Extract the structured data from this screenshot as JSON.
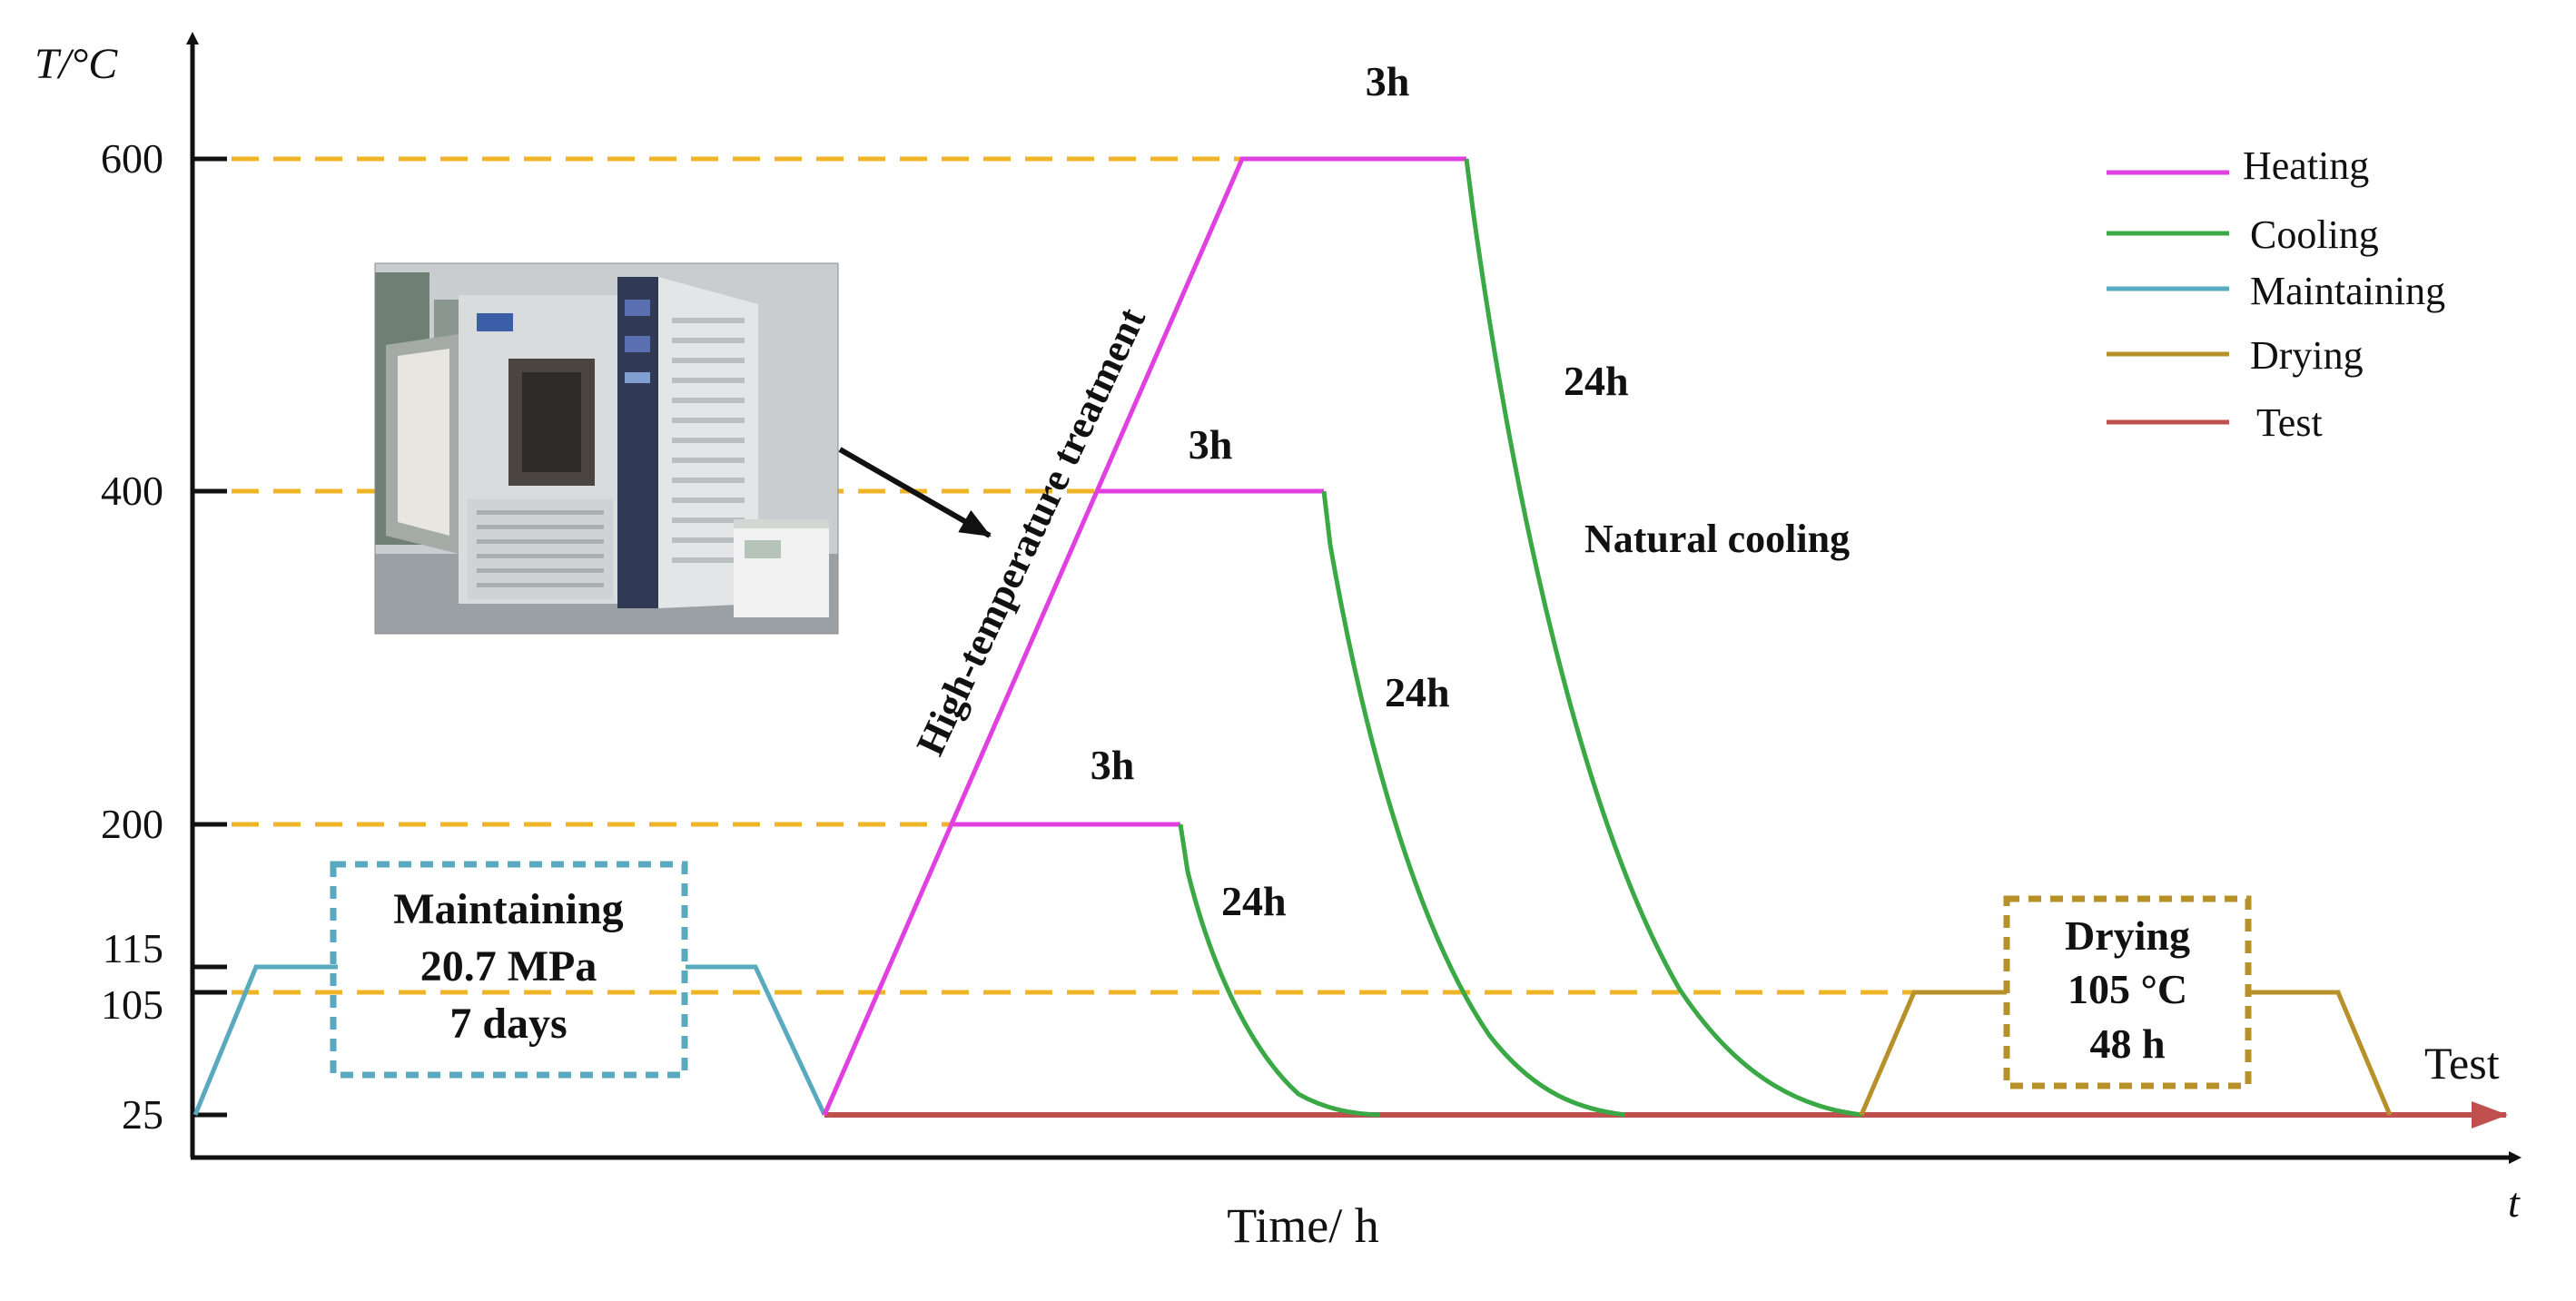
{
  "axis": {
    "y_label": "T/°C",
    "x_label": "Time/ h",
    "x_end_label": "t",
    "y_ticks": [
      "600",
      "400",
      "200",
      "115",
      "105",
      "25"
    ]
  },
  "annotations": {
    "dwell_600": "3h",
    "dwell_400": "3h",
    "dwell_200": "3h",
    "cool_600": "24h",
    "cool_400": "24h",
    "cool_200": "24h",
    "natural_cooling": "Natural cooling",
    "high_temp": "High-temperature treatment",
    "test_label": "Test"
  },
  "maintaining_box": {
    "line1": "Maintaining",
    "line2": "20.7 MPa",
    "line3": "7 days"
  },
  "drying_box": {
    "line1": "Drying",
    "line2": "105 °C",
    "line3": "48 h"
  },
  "legend": [
    {
      "label": "Heating",
      "color": "#e040e0"
    },
    {
      "label": "Cooling",
      "color": "#3aa845"
    },
    {
      "label": "Maintaining",
      "color": "#5aaabf"
    },
    {
      "label": "Drying",
      "color": "#b8902a"
    },
    {
      "label": "Test",
      "color": "#c0504d"
    }
  ],
  "colors": {
    "heating": "#e040e0",
    "cooling": "#3aa845",
    "maintaining": "#5aaabf",
    "drying": "#b8902a",
    "test": "#c0504d",
    "reference_line": "#f0b429",
    "axis": "#111111"
  },
  "photo": {
    "subject": "high-temperature-furnace-photo"
  }
}
